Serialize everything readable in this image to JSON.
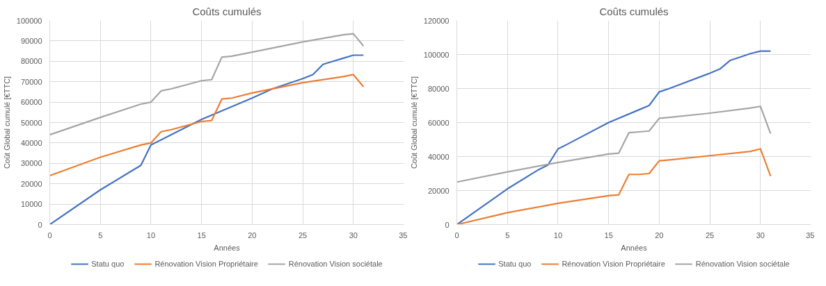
{
  "chart_data": [
    {
      "type": "line",
      "title": "Coûts cumulés",
      "xlabel": "Années",
      "ylabel": "Coût Global cumulé [€TTC]",
      "xlim": [
        0,
        35
      ],
      "xticks": [
        0,
        5,
        10,
        15,
        20,
        25,
        30,
        35
      ],
      "ylim": [
        0,
        100000
      ],
      "yticks": [
        0,
        10000,
        20000,
        30000,
        40000,
        50000,
        60000,
        70000,
        80000,
        90000,
        100000
      ],
      "grid": true,
      "legend": "bottom",
      "line_style": "solid",
      "marker": "none",
      "series": [
        {
          "name": "Statu quo",
          "color": "#4472c4",
          "x": [
            0,
            5,
            8,
            9,
            10,
            11,
            15,
            20,
            22,
            25,
            26,
            27,
            28,
            29,
            30,
            31
          ],
          "values": [
            0,
            17000,
            26000,
            29000,
            39000,
            41500,
            51500,
            62000,
            66500,
            71500,
            73500,
            78500,
            80000,
            81500,
            83000,
            83000
          ]
        },
        {
          "name": "Rénovation Vision Propriétaire",
          "color": "#ed7d31",
          "x": [
            0,
            5,
            9,
            10,
            11,
            12,
            15,
            16,
            17,
            18,
            20,
            25,
            29,
            30,
            31
          ],
          "values": [
            24000,
            33000,
            39000,
            40000,
            45500,
            46500,
            50500,
            51000,
            61500,
            62000,
            64500,
            69500,
            72500,
            73500,
            67500
          ]
        },
        {
          "name": "Rénovation Vision sociétale",
          "color": "#a5a5a5",
          "x": [
            0,
            5,
            9,
            10,
            11,
            12,
            15,
            16,
            17,
            18,
            20,
            25,
            29,
            30,
            31
          ],
          "values": [
            44000,
            52500,
            59000,
            60000,
            65500,
            66500,
            70500,
            71000,
            82000,
            82500,
            84500,
            89500,
            93000,
            93500,
            87500
          ]
        }
      ]
    },
    {
      "type": "line",
      "title": "Coûts cumulés",
      "xlabel": "Années",
      "ylabel": "Coût Global cumulé [€TTC]",
      "xlim": [
        0,
        35
      ],
      "xticks": [
        0,
        5,
        10,
        15,
        20,
        25,
        30,
        35
      ],
      "ylim": [
        0,
        120000
      ],
      "yticks": [
        0,
        20000,
        40000,
        60000,
        80000,
        100000,
        120000
      ],
      "grid": true,
      "legend": "bottom",
      "line_style": "solid",
      "marker": "none",
      "series": [
        {
          "name": "Statu quo",
          "color": "#4472c4",
          "x": [
            0,
            5,
            8,
            9,
            10,
            11,
            15,
            18,
            19,
            20,
            21,
            25,
            26,
            27,
            28,
            29,
            30,
            31
          ],
          "values": [
            0,
            21000,
            32000,
            35000,
            44500,
            47500,
            60000,
            67500,
            70000,
            78000,
            80000,
            89000,
            91500,
            96500,
            98500,
            100500,
            102000,
            102000
          ]
        },
        {
          "name": "Rénovation Vision Propriétaire",
          "color": "#ed7d31",
          "x": [
            0,
            5,
            10,
            15,
            16,
            17,
            18,
            19,
            20,
            21,
            25,
            29,
            30,
            31
          ],
          "values": [
            0,
            7000,
            12500,
            17000,
            17500,
            29500,
            29500,
            30000,
            37500,
            38000,
            40500,
            43000,
            44500,
            28500
          ]
        },
        {
          "name": "Rénovation Vision sociétale",
          "color": "#a5a5a5",
          "x": [
            0,
            5,
            10,
            15,
            16,
            17,
            18,
            19,
            20,
            21,
            25,
            29,
            30,
            31
          ],
          "values": [
            25000,
            31000,
            36500,
            41500,
            42000,
            54000,
            54500,
            55000,
            62500,
            63000,
            65500,
            68500,
            69500,
            53500
          ]
        }
      ]
    }
  ]
}
